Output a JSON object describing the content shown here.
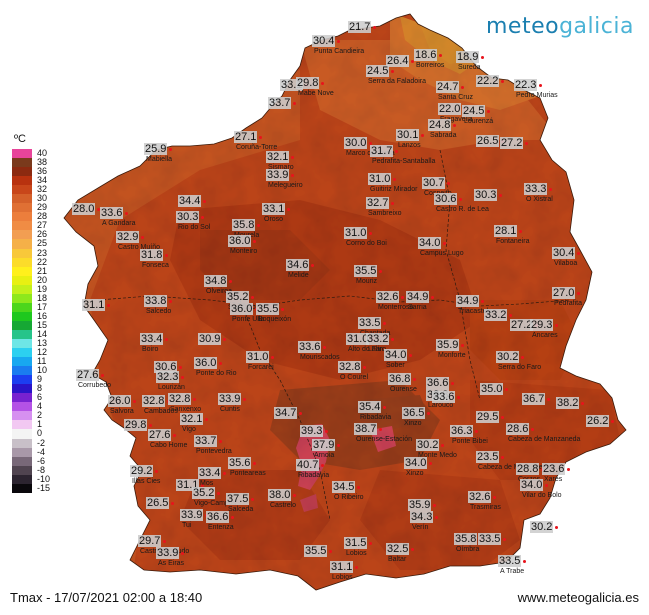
{
  "brand": {
    "part1": "meteo",
    "part2": "galicia"
  },
  "caption": "Tmax - 17/07/2021 02:00 a 18:40",
  "website": "www.meteogalicia.es",
  "legend": {
    "unit": "ºC",
    "items": [
      {
        "label": "40",
        "color": "#e8449a"
      },
      {
        "label": "38",
        "color": "#7a3a1c"
      },
      {
        "label": "36",
        "color": "#8c2a10"
      },
      {
        "label": "34",
        "color": "#b8320f"
      },
      {
        "label": "32",
        "color": "#c8461a"
      },
      {
        "label": "30",
        "color": "#d4602a"
      },
      {
        "label": "29",
        "color": "#e07034"
      },
      {
        "label": "28",
        "color": "#ec7e3c"
      },
      {
        "label": "27",
        "color": "#f08c44"
      },
      {
        "label": "26",
        "color": "#f29e52"
      },
      {
        "label": "25",
        "color": "#f5b048"
      },
      {
        "label": "23",
        "color": "#f8c83a"
      },
      {
        "label": "22",
        "color": "#fcdc2a"
      },
      {
        "label": "21",
        "color": "#fff01c"
      },
      {
        "label": "20",
        "color": "#e8f012"
      },
      {
        "label": "19",
        "color": "#c4f01a"
      },
      {
        "label": "18",
        "color": "#8ee81c"
      },
      {
        "label": "17",
        "color": "#4cd61c"
      },
      {
        "label": "16",
        "color": "#1ec81e"
      },
      {
        "label": "15",
        "color": "#16a834"
      },
      {
        "label": "14",
        "color": "#26c48a"
      },
      {
        "label": "13",
        "color": "#6ee6e6"
      },
      {
        "label": "12",
        "color": "#2cd0f0"
      },
      {
        "label": "11",
        "color": "#18a8f0"
      },
      {
        "label": "10",
        "color": "#1a7cf0"
      },
      {
        "label": "9",
        "color": "#1c3ef0"
      },
      {
        "label": "8",
        "color": "#2a14c8"
      },
      {
        "label": "6",
        "color": "#7822d0"
      },
      {
        "label": "4",
        "color": "#b452e6"
      },
      {
        "label": "2",
        "color": "#d690f0"
      },
      {
        "label": "1",
        "color": "#f2c8f2"
      },
      {
        "label": "0",
        "color": "#f4f4f4"
      },
      {
        "label": "-2",
        "color": "#c8c0c8"
      },
      {
        "label": "-4",
        "color": "#a898a8"
      },
      {
        "label": "-6",
        "color": "#786878"
      },
      {
        "label": "-8",
        "color": "#504450"
      },
      {
        "label": "-10",
        "color": "#2c2430"
      },
      {
        "label": "-15",
        "color": "#0a080c"
      }
    ]
  },
  "stations": [
    {
      "v": "21.7",
      "n": ""
    },
    {
      "v": "30.4",
      "n": "Punta Candieira"
    },
    {
      "v": "18.6",
      "n": "Borreiros"
    },
    {
      "v": "18.9",
      "n": "Sureda"
    },
    {
      "v": "26.4",
      "n": ""
    },
    {
      "v": "24.5",
      "n": "Serra da Faladoira"
    },
    {
      "v": "33.1",
      "n": ""
    },
    {
      "v": "29.8",
      "n": "Mabe Nove"
    },
    {
      "v": "24.7",
      "n": "Santa Cruz"
    },
    {
      "v": "22.2",
      "n": ""
    },
    {
      "v": "22.3",
      "n": "Pedro Murias"
    },
    {
      "v": "33.7",
      "n": ""
    },
    {
      "v": "22.0",
      "n": "Fragavella"
    },
    {
      "v": "24.5",
      "n": "Lourenzá"
    },
    {
      "v": "24.8",
      "n": "Sabrada"
    },
    {
      "v": "27.1",
      "n": "Coruña-Torre"
    },
    {
      "v": "30.1",
      "n": "Lanzos"
    },
    {
      "v": "26.5",
      "n": ""
    },
    {
      "v": "27.2",
      "n": ""
    },
    {
      "v": "25.9",
      "n": "Mabiella"
    },
    {
      "v": "32.1",
      "n": "Sismaro"
    },
    {
      "v": "30.0",
      "n": "Marco da Curra"
    },
    {
      "v": "31.7",
      "n": "Pedrafita-Santaballa"
    },
    {
      "v": "33.9",
      "n": "Melegueiro"
    },
    {
      "v": "31.0",
      "n": "Guitiriz Mirador"
    },
    {
      "v": "30.7",
      "n": "Cospeito"
    },
    {
      "v": "30.6",
      "n": "Castro R. de Lea"
    },
    {
      "v": "30.3",
      "n": ""
    },
    {
      "v": "33.3",
      "n": "O Xistral"
    },
    {
      "v": "28.0",
      "n": ""
    },
    {
      "v": "33.6",
      "n": "A Gandara"
    },
    {
      "v": "34.4",
      "n": ""
    },
    {
      "v": "30.3",
      "n": "Rio do Sol"
    },
    {
      "v": "33.1",
      "n": "Oroso"
    },
    {
      "v": "32.7",
      "n": "Sambreixo"
    },
    {
      "v": "32.9",
      "n": "Castro Muíño"
    },
    {
      "v": "35.8",
      "n": "Mourela"
    },
    {
      "v": "36.0",
      "n": "Monteiro"
    },
    {
      "v": "31.0",
      "n": "Corno do Boi"
    },
    {
      "v": "34.0",
      "n": "Campus Lugo"
    },
    {
      "v": "28.1",
      "n": "Fontaneira"
    },
    {
      "v": "31.8",
      "n": "Fonseca"
    },
    {
      "v": "34.6",
      "n": "Melide"
    },
    {
      "v": "35.5",
      "n": "Mouriz"
    },
    {
      "v": "30.4",
      "n": "Vilaboa"
    },
    {
      "v": "31.1",
      "n": ""
    },
    {
      "v": "34.8",
      "n": "Olveiroa"
    },
    {
      "v": "35.2",
      "n": "Santiago"
    },
    {
      "v": "33.8",
      "n": "Salcedo"
    },
    {
      "v": "36.0",
      "n": "Ponte Ulla"
    },
    {
      "v": "35.5",
      "n": "Boqueixón"
    },
    {
      "v": "32.6",
      "n": "Monterroso"
    },
    {
      "v": "34.9",
      "n": "Sarria"
    },
    {
      "v": "34.9",
      "n": "Triacastela"
    },
    {
      "v": "27.0",
      "n": "Pedrafita"
    },
    {
      "v": "33.2",
      "n": ""
    },
    {
      "v": "33.5",
      "n": "Chantada"
    },
    {
      "v": "27.2",
      "n": ""
    },
    {
      "v": "29.3",
      "n": "Ancares"
    },
    {
      "v": "33.4",
      "n": "Boiro"
    },
    {
      "v": "30.9",
      "n": ""
    },
    {
      "v": "31.0",
      "n": "Alto do Faro"
    },
    {
      "v": "33.2",
      "n": "Lalín"
    },
    {
      "v": "34.0",
      "n": "Sober"
    },
    {
      "v": "35.9",
      "n": "Monforte"
    },
    {
      "v": "36.0",
      "n": "Ponte do Rio"
    },
    {
      "v": "31.0",
      "n": "Forcarei"
    },
    {
      "v": "33.6",
      "n": "Mouriscados"
    },
    {
      "v": "30.2",
      "n": "Serra do Faro"
    },
    {
      "v": "32.8",
      "n": "O Courel"
    },
    {
      "v": "27.6",
      "n": "Corrubedo"
    },
    {
      "v": "30.6",
      "n": "Ribeira"
    },
    {
      "v": "32.3",
      "n": "Lourizán"
    },
    {
      "v": "36.8",
      "n": "Ourense"
    },
    {
      "v": "36.6",
      "n": "A Rúa"
    },
    {
      "v": "35.0",
      "n": ""
    },
    {
      "v": "26.0",
      "n": "Salvora"
    },
    {
      "v": "32.8",
      "n": "Cambados"
    },
    {
      "v": "33.9",
      "n": "Cuntis"
    },
    {
      "v": "33.8",
      "n": "Larouco"
    },
    {
      "v": "33.6",
      "n": ""
    },
    {
      "v": "36.7",
      "n": ""
    },
    {
      "v": "38.2",
      "n": ""
    },
    {
      "v": "29.8",
      "n": ""
    },
    {
      "v": "32.8",
      "n": "Sanxenxo"
    },
    {
      "v": "34.7",
      "n": ""
    },
    {
      "v": "35.4",
      "n": "Ribadavia"
    },
    {
      "v": "36.5",
      "n": "Xinzo"
    },
    {
      "v": "29.5",
      "n": ""
    },
    {
      "v": "27.6",
      "n": "Cabo Home"
    },
    {
      "v": "33.7",
      "n": "Pontevedra"
    },
    {
      "v": "39.3",
      "n": ""
    },
    {
      "v": "38.7",
      "n": "Ourense-Estación"
    },
    {
      "v": "36.3",
      "n": "Ponte Bibei"
    },
    {
      "v": "28.6",
      "n": "Cabeza de Manzaneda"
    },
    {
      "v": "26.2",
      "n": ""
    },
    {
      "v": "32.1",
      "n": "Vigo"
    },
    {
      "v": "37.9",
      "n": "Arnoia"
    },
    {
      "v": "30.2",
      "n": "Monte Medo"
    },
    {
      "v": "23.5",
      "n": "Cabeza de Manzaneda"
    },
    {
      "v": "29.2",
      "n": "Illas Cies"
    },
    {
      "v": "35.6",
      "n": "Ponteareas"
    },
    {
      "v": "40.7",
      "n": "Ribadavia"
    },
    {
      "v": "34.0",
      "n": "Xinzo"
    },
    {
      "v": "28.8",
      "n": "Corzos"
    },
    {
      "v": "23.6",
      "n": "Xares"
    },
    {
      "v": "31.1",
      "n": ""
    },
    {
      "v": "33.4",
      "n": "Mos"
    },
    {
      "v": "34.5",
      "n": "O Ribeiro"
    },
    {
      "v": "34.0",
      "n": "Vilar do Bolo"
    },
    {
      "v": "35.2",
      "n": "Vigo-Campus"
    },
    {
      "v": "37.5",
      "n": "Salceda"
    },
    {
      "v": "38.0",
      "n": "Castrelo"
    },
    {
      "v": "32.6",
      "n": "Trasmiras"
    },
    {
      "v": "26.5",
      "n": ""
    },
    {
      "v": "35.9",
      "n": "Baltar"
    },
    {
      "v": "34.3",
      "n": "Verín"
    },
    {
      "v": "33.9",
      "n": "Tui"
    },
    {
      "v": "36.6",
      "n": "Entenza"
    },
    {
      "v": "29.7",
      "n": "Castro Vicaludo"
    },
    {
      "v": "31.5",
      "n": "Lobios"
    },
    {
      "v": "32.5",
      "n": "Baltar"
    },
    {
      "v": "35.8",
      "n": "Oímbra"
    },
    {
      "v": "33.5",
      "n": ""
    },
    {
      "v": "30.2",
      "n": ""
    },
    {
      "v": "33.9",
      "n": "As Eiras"
    },
    {
      "v": "35.5",
      "n": ""
    },
    {
      "v": "31.1",
      "n": "Lobios"
    },
    {
      "v": "33.5",
      "n": "A Trabe"
    }
  ]
}
